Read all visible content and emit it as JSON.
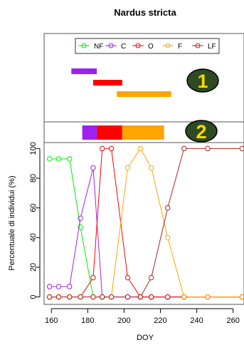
{
  "chart_data": {
    "type": "line",
    "title": "Nardus stricta",
    "xlabel": "DOY",
    "ylabel": "Percentuale di individui (%)",
    "xlim": [
      156,
      266
    ],
    "ylim": [
      -5,
      104
    ],
    "xticks": [
      "160",
      "180",
      "200",
      "220",
      "240",
      "260"
    ],
    "yticks": [
      "0",
      "20",
      "40",
      "60",
      "80",
      "100"
    ],
    "grid": false,
    "legend_position": "top",
    "x": [
      159,
      164,
      170,
      176,
      183,
      188,
      193,
      202,
      209,
      215,
      224,
      233,
      246,
      265
    ],
    "series": [
      {
        "name": "NF",
        "color": "#00ee00",
        "values": [
          93,
          93,
          93,
          47,
          0,
          0,
          0,
          0,
          0,
          0,
          0,
          0,
          0,
          0
        ]
      },
      {
        "name": "C",
        "color": "#a020f0",
        "values": [
          7,
          7,
          7,
          53,
          87,
          0,
          0,
          0,
          0,
          0,
          0,
          0,
          0,
          0
        ]
      },
      {
        "name": "O",
        "color": "#ff0000",
        "values": [
          0,
          0,
          0,
          0,
          13,
          100,
          100,
          13,
          0,
          0,
          0,
          0,
          0,
          0
        ]
      },
      {
        "name": "F",
        "color": "#ffa500",
        "values": [
          0,
          0,
          0,
          0,
          0,
          0,
          0,
          87,
          100,
          87,
          40,
          0,
          0,
          0
        ]
      },
      {
        "name": "LF",
        "color": "#b22222",
        "values": [
          0,
          0,
          0,
          0,
          0,
          0,
          0,
          0,
          0,
          13,
          60,
          100,
          100,
          100
        ]
      }
    ],
    "panels": [
      {
        "badge": "1",
        "bars": [
          {
            "phase": "C",
            "color": "#a020f0",
            "start": 171,
            "end": 185
          },
          {
            "phase": "O",
            "color": "#ff0000",
            "start": 183,
            "end": 199
          },
          {
            "phase": "F",
            "color": "#ffa500",
            "start": 196,
            "end": 226
          }
        ]
      },
      {
        "badge": "2",
        "bars": [
          {
            "phase": "C",
            "color": "#a020f0",
            "start": 177,
            "end": 185
          },
          {
            "phase": "O",
            "color": "#ff0000",
            "start": 185,
            "end": 199
          },
          {
            "phase": "F",
            "color": "#ffa500",
            "start": 199,
            "end": 222
          }
        ]
      }
    ]
  }
}
